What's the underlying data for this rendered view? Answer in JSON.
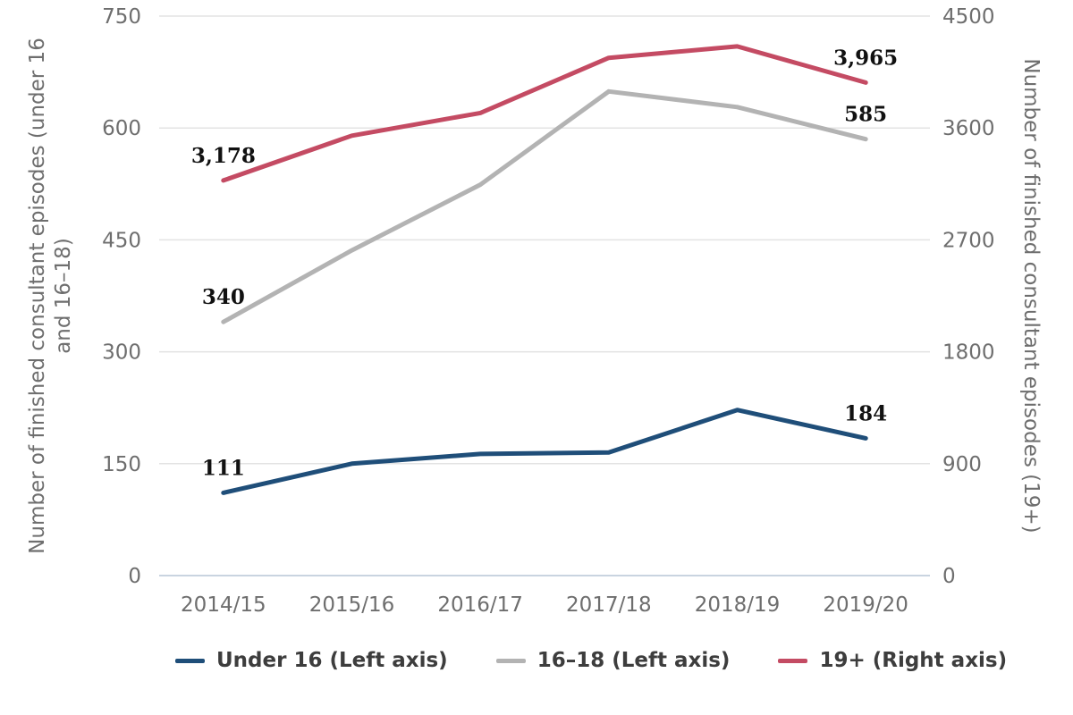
{
  "chart_data": {
    "type": "line",
    "title": "",
    "categories": [
      "2014/15",
      "2015/16",
      "2016/17",
      "2017/18",
      "2018/19",
      "2019/20"
    ],
    "series": [
      {
        "id": "under-16",
        "name": "Under 16 (Left axis)",
        "axis": "left",
        "color_key": "navy",
        "values": [
          111,
          150,
          163,
          165,
          222,
          184
        ],
        "point_labels": [
          {
            "index": 0,
            "text": "111"
          },
          {
            "index": 5,
            "text": "184"
          }
        ]
      },
      {
        "id": "16-18",
        "name": "16–18 (Left axis)",
        "axis": "left",
        "color_key": "gray",
        "values": [
          340,
          436,
          524,
          649,
          628,
          585
        ],
        "point_labels": [
          {
            "index": 0,
            "text": "340"
          },
          {
            "index": 5,
            "text": "585"
          }
        ]
      },
      {
        "id": "19-plus",
        "name": "19+ (Right axis)",
        "axis": "right",
        "color_key": "crimson",
        "values": [
          3178,
          3538,
          3721,
          4164,
          4256,
          3965
        ],
        "point_labels": [
          {
            "index": 0,
            "text": "3,178"
          },
          {
            "index": 5,
            "text": "3,965"
          }
        ]
      }
    ],
    "left_axis": {
      "label": "Number of finished consultant episodes (under 16 and 16–18)",
      "label_lines": [
        "Number of finished consultant episodes (under 16",
        "and 16–18)"
      ],
      "ticks": [
        0,
        150,
        300,
        450,
        600,
        750
      ],
      "min": 0,
      "max": 750
    },
    "right_axis": {
      "label": "Number of finished consultant episodes (19+)",
      "ticks": [
        0,
        900,
        1800,
        2700,
        3600,
        4500
      ],
      "min": 0,
      "max": 4500
    },
    "grid": true,
    "legend_position": "bottom"
  },
  "colors": {
    "navy": "#1f4e79",
    "gray": "#b3b3b3",
    "crimson": "#c44b63",
    "grid_line": "#e3e3e3",
    "axis_line": "#c9d4e0",
    "tick_text": "#6e6e6e",
    "axis_title_text": "#6e6e6e",
    "legend_text": "#3d3d3d",
    "data_label_text": "#111111"
  }
}
